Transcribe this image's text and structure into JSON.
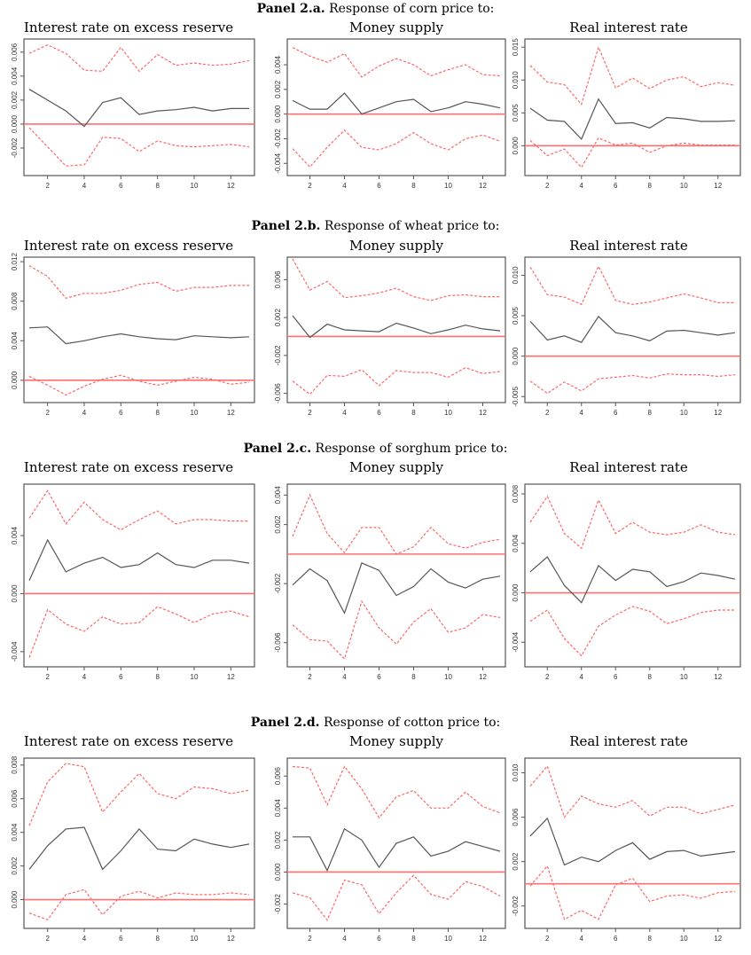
{
  "panels": [
    {
      "label": "Panel 2.a.",
      "title": "Response of corn price to:",
      "charts": [
        {
          "title": "Interest rate on excess reserve",
          "yticks": [
            -0.002,
            0.0,
            0.002,
            0.004,
            0.006
          ],
          "ylim": [
            -0.004,
            0.0068
          ],
          "response": [
            0.0029,
            0.002,
            0.0011,
            -0.0002,
            0.0018,
            0.0022,
            0.0008,
            0.0011,
            0.0012,
            0.0014,
            0.0011,
            0.0013,
            0.0013
          ],
          "upper": [
            0.0059,
            0.0066,
            0.0059,
            0.0045,
            0.0044,
            0.0064,
            0.0044,
            0.0058,
            0.0049,
            0.0051,
            0.0049,
            0.005,
            0.0053
          ],
          "lower": [
            -0.0003,
            -0.0019,
            -0.0035,
            -0.0034,
            -0.0011,
            -0.0012,
            -0.0023,
            -0.0014,
            -0.0018,
            -0.0019,
            -0.0018,
            -0.0017,
            -0.0019
          ]
        },
        {
          "title": "Money supply",
          "yticks": [
            -0.004,
            -0.002,
            0.0,
            0.002,
            0.004
          ],
          "ylim": [
            -0.0047,
            0.0058
          ],
          "response": [
            0.0011,
            0.0004,
            0.0004,
            0.0017,
            -0.0,
            0.0005,
            0.001,
            0.0012,
            0.0002,
            0.0005,
            0.001,
            0.0008,
            0.0005
          ],
          "upper": [
            0.0054,
            0.0047,
            0.0042,
            0.0049,
            0.003,
            0.0039,
            0.0045,
            0.004,
            0.0031,
            0.0036,
            0.004,
            0.0032,
            0.0031
          ],
          "lower": [
            -0.0028,
            -0.0043,
            -0.0027,
            -0.0013,
            -0.0027,
            -0.0029,
            -0.0024,
            -0.0015,
            -0.0024,
            -0.0029,
            -0.002,
            -0.0017,
            -0.0022
          ]
        },
        {
          "title": "Real interest rate",
          "yticks": [
            0.0,
            0.005,
            0.01,
            0.015
          ],
          "ylim": [
            -0.004,
            0.0157
          ],
          "response": [
            0.0057,
            0.0039,
            0.0037,
            0.001,
            0.0071,
            0.0034,
            0.0035,
            0.0027,
            0.0043,
            0.0041,
            0.0037,
            0.0037,
            0.0038
          ],
          "upper": [
            0.0122,
            0.0097,
            0.0093,
            0.0063,
            0.015,
            0.0088,
            0.0103,
            0.0087,
            0.01,
            0.0105,
            0.009,
            0.0096,
            0.0092
          ],
          "lower": [
            0.0008,
            -0.0015,
            -0.0005,
            -0.0033,
            0.0012,
            0.0001,
            0.0004,
            -0.001,
            0.0,
            0.0004,
            0.0001,
            0.0001,
            0.0001
          ]
        }
      ]
    },
    {
      "label": "Panel 2.b.",
      "title": "Response of wheat price to:",
      "charts": [
        {
          "title": "Interest rate on excess reserve",
          "yticks": [
            0.0,
            0.004,
            0.008,
            0.012
          ],
          "ylim": [
            -0.0019,
            0.0121
          ],
          "response": [
            0.0053,
            0.0054,
            0.0037,
            0.004,
            0.0044,
            0.0047,
            0.0044,
            0.0042,
            0.0041,
            0.0045,
            0.0044,
            0.0043,
            0.0044
          ],
          "upper": [
            0.0116,
            0.0105,
            0.0083,
            0.0088,
            0.0088,
            0.0091,
            0.0097,
            0.0099,
            0.009,
            0.0094,
            0.0094,
            0.0096,
            0.0096
          ],
          "lower": [
            0.0004,
            -0.0005,
            -0.0015,
            -0.0006,
            0.0001,
            0.0005,
            -0.0001,
            -0.0005,
            -0.0001,
            0.0003,
            0.0001,
            -0.0004,
            -0.0002
          ]
        },
        {
          "title": "Money supply",
          "yticks": [
            -0.006,
            -0.002,
            0.002,
            0.006
          ],
          "ylim": [
            -0.0066,
            0.008
          ],
          "response": [
            0.0022,
            -0.0001,
            0.0013,
            0.0007,
            0.0006,
            0.0005,
            0.0014,
            0.0009,
            0.0003,
            0.0007,
            0.0012,
            0.0008,
            0.0006
          ],
          "upper": [
            0.0082,
            0.0049,
            0.0058,
            0.0041,
            0.0043,
            0.0046,
            0.0051,
            0.0042,
            0.0038,
            0.0043,
            0.0044,
            0.0042,
            0.0042
          ],
          "lower": [
            -0.0047,
            -0.0061,
            -0.0041,
            -0.0042,
            -0.0035,
            -0.0052,
            -0.0036,
            -0.0038,
            -0.0038,
            -0.0043,
            -0.0033,
            -0.0039,
            -0.0037
          ]
        },
        {
          "title": "Real interest rate",
          "yticks": [
            -0.005,
            0.0,
            0.005,
            0.01
          ],
          "ylim": [
            -0.0053,
            0.0118
          ],
          "response": [
            0.0043,
            0.002,
            0.0025,
            0.0017,
            0.0049,
            0.0029,
            0.0025,
            0.0019,
            0.0031,
            0.0032,
            0.0029,
            0.0026,
            0.0029
          ],
          "upper": [
            0.011,
            0.0076,
            0.0073,
            0.0064,
            0.0111,
            0.0069,
            0.0064,
            0.0067,
            0.0072,
            0.0077,
            0.0072,
            0.0066,
            0.0066
          ],
          "lower": [
            -0.0031,
            -0.0046,
            -0.0032,
            -0.0043,
            -0.0028,
            -0.0026,
            -0.0024,
            -0.0027,
            -0.0022,
            -0.0023,
            -0.0023,
            -0.0025,
            -0.0023
          ]
        }
      ]
    },
    {
      "label": "Panel 2.c.",
      "title": "Response of sorghum price to:",
      "charts": [
        {
          "title": "Interest rate on excess reserve",
          "yticks": [
            -0.004,
            0.0,
            0.004
          ],
          "ylim": [
            -0.0048,
            0.0073
          ],
          "response": [
            0.0009,
            0.0037,
            0.0015,
            0.0021,
            0.0025,
            0.0018,
            0.002,
            0.0028,
            0.002,
            0.0018,
            0.0023,
            0.0023,
            0.0021
          ],
          "upper": [
            0.0052,
            0.0071,
            0.0048,
            0.0063,
            0.0051,
            0.0044,
            0.0051,
            0.0057,
            0.0048,
            0.0051,
            0.0051,
            0.005,
            0.005
          ],
          "lower": [
            -0.0044,
            -0.0011,
            -0.0021,
            -0.0026,
            -0.0016,
            -0.0021,
            -0.002,
            -0.0009,
            -0.0014,
            -0.002,
            -0.0014,
            -0.0012,
            -0.0016
          ]
        },
        {
          "title": "Money supply",
          "yticks": [
            -0.006,
            -0.002,
            0.002,
            0.004
          ],
          "ylim": [
            -0.0074,
            0.0045
          ],
          "response": [
            -0.0021,
            -0.001,
            -0.0018,
            -0.004,
            -0.0006,
            -0.0011,
            -0.0028,
            -0.0022,
            -0.001,
            -0.0019,
            -0.0023,
            -0.0017,
            -0.0015
          ],
          "upper": [
            0.0012,
            0.004,
            0.0014,
            0.0001,
            0.0018,
            0.0018,
            0.0,
            0.0005,
            0.0018,
            0.0007,
            0.0004,
            0.0008,
            0.001
          ],
          "lower": [
            -0.0048,
            -0.0058,
            -0.0059,
            -0.0071,
            -0.0032,
            -0.005,
            -0.0061,
            -0.0046,
            -0.0037,
            -0.0053,
            -0.005,
            -0.0041,
            -0.0043
          ]
        },
        {
          "title": "Real interest rate",
          "yticks": [
            -0.004,
            0.0,
            0.004,
            0.008
          ],
          "ylim": [
            -0.0057,
            0.0085
          ],
          "response": [
            0.0017,
            0.0029,
            0.0006,
            -0.0008,
            0.0022,
            0.001,
            0.0019,
            0.0017,
            0.0005,
            0.0009,
            0.0016,
            0.0014,
            0.0011
          ],
          "upper": [
            0.0057,
            0.0078,
            0.0048,
            0.0036,
            0.0075,
            0.0048,
            0.0057,
            0.0049,
            0.0047,
            0.0049,
            0.0055,
            0.0049,
            0.0047
          ],
          "lower": [
            -0.0023,
            -0.0014,
            -0.0037,
            -0.0051,
            -0.0027,
            -0.0018,
            -0.0011,
            -0.0015,
            -0.0025,
            -0.0021,
            -0.0016,
            -0.0014,
            -0.0014
          ]
        }
      ]
    },
    {
      "label": "Panel 2.d.",
      "title": "Response of cotton price to:",
      "charts": [
        {
          "title": "Interest rate on excess reserve",
          "yticks": [
            0.0,
            0.002,
            0.004,
            0.006,
            0.008
          ],
          "ylim": [
            -0.0015,
            0.0082
          ],
          "response": [
            0.0018,
            0.0032,
            0.0042,
            0.0043,
            0.0018,
            0.0029,
            0.0042,
            0.003,
            0.0029,
            0.0036,
            0.0033,
            0.0031,
            0.0033
          ],
          "upper": [
            0.0044,
            0.007,
            0.0081,
            0.0079,
            0.0052,
            0.0064,
            0.0075,
            0.0063,
            0.006,
            0.0067,
            0.0066,
            0.0063,
            0.0065
          ],
          "lower": [
            -0.0008,
            -0.0012,
            0.0003,
            0.0006,
            -0.0009,
            0.0002,
            0.0005,
            0.0001,
            0.0004,
            0.0003,
            0.0003,
            0.0004,
            0.0003
          ]
        },
        {
          "title": "Money supply",
          "yticks": [
            -0.002,
            0.0,
            0.002,
            0.004,
            0.006
          ],
          "ylim": [
            -0.0033,
            0.0069
          ],
          "response": [
            0.0022,
            0.0022,
            0.0001,
            0.0027,
            0.002,
            0.0003,
            0.0018,
            0.0022,
            0.001,
            0.0013,
            0.0019,
            0.0016,
            0.0013
          ],
          "upper": [
            0.0066,
            0.0065,
            0.0042,
            0.0066,
            0.0052,
            0.0034,
            0.0047,
            0.0051,
            0.004,
            0.004,
            0.005,
            0.0041,
            0.0037
          ],
          "lower": [
            -0.0013,
            -0.0016,
            -0.003,
            -0.0005,
            -0.0008,
            -0.0026,
            -0.0013,
            -0.0002,
            -0.0014,
            -0.0017,
            -0.0006,
            -0.0009,
            -0.0015
          ]
        },
        {
          "title": "Real interest rate",
          "yticks": [
            -0.002,
            0.002,
            0.006,
            0.01
          ],
          "ylim": [
            -0.0037,
            0.011
          ],
          "response": [
            0.0043,
            0.0059,
            0.0017,
            0.0024,
            0.002,
            0.003,
            0.0037,
            0.0022,
            0.0029,
            0.003,
            0.0025,
            0.0027,
            0.0029
          ],
          "upper": [
            0.0088,
            0.0106,
            0.006,
            0.0079,
            0.0072,
            0.0069,
            0.0075,
            0.0061,
            0.0069,
            0.0069,
            0.0063,
            0.0067,
            0.0071
          ],
          "lower": [
            -0.0002,
            0.0016,
            -0.0032,
            -0.0024,
            -0.0032,
            -0.0001,
            0.0005,
            -0.0016,
            -0.0011,
            -0.001,
            -0.0013,
            -0.0008,
            -0.0007
          ]
        }
      ]
    }
  ],
  "chart_data": [],
  "xticks": [
    2,
    4,
    6,
    8,
    10,
    12
  ],
  "colors": {
    "response": "#555555",
    "band": "#ff6666",
    "zero": "#ff6f6f",
    "frame": "#555555"
  }
}
